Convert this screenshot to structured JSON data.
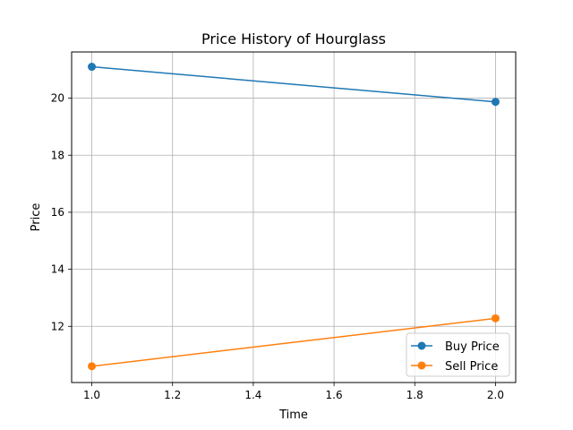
{
  "chart_data": {
    "type": "line",
    "title": "Price History of Hourglass",
    "xlabel": "Time",
    "ylabel": "Price",
    "x": [
      1.0,
      2.0
    ],
    "xlim": [
      0.95,
      2.05
    ],
    "ylim": [
      10.03,
      21.62
    ],
    "xticks": [
      1.0,
      1.2,
      1.4,
      1.6,
      1.8,
      2.0
    ],
    "xtick_labels": [
      "1.0",
      "1.2",
      "1.4",
      "1.6",
      "1.8",
      "2.0"
    ],
    "yticks": [
      12,
      14,
      16,
      18,
      20
    ],
    "ytick_labels": [
      "12",
      "14",
      "16",
      "18",
      "20"
    ],
    "grid": true,
    "legend_position": "bottom-right",
    "series": [
      {
        "name": "Buy Price",
        "values": [
          21.1,
          19.87
        ],
        "color": "#1f77b4",
        "marker": "circle"
      },
      {
        "name": "Sell Price",
        "values": [
          10.6,
          12.28
        ],
        "color": "#ff7f0e",
        "marker": "circle"
      }
    ]
  }
}
